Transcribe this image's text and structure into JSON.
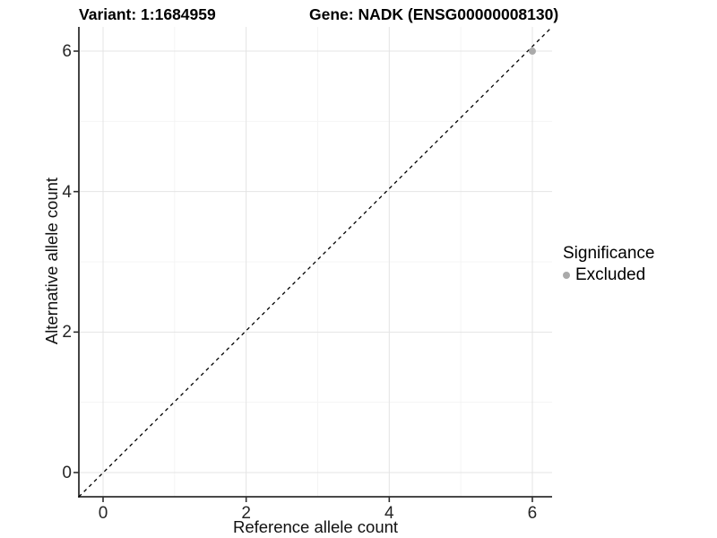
{
  "titles": {
    "variant": "Variant: 1:1684959",
    "gene": "Gene: NADK (ENSG00000008130)"
  },
  "legend": {
    "title": "Significance",
    "items": [
      {
        "label": "Excluded",
        "color": "#aaaaaa"
      }
    ]
  },
  "colors": {
    "background": "#ffffff",
    "grid_major": "#e4e4e4",
    "grid_minor": "#f4f4f4",
    "axis_line": "#2f2f2f",
    "identity_line": "#000000",
    "point": "#aaaaaa"
  },
  "chart_data": {
    "type": "scatter",
    "title": "Variant: 1:1684959   Gene: NADK (ENSG00000008130)",
    "xlabel": "Reference allele count",
    "ylabel": "Alternative allele count",
    "xlim": [
      -0.34,
      6.28
    ],
    "ylim": [
      -0.35,
      6.35
    ],
    "x_ticks": [
      0,
      2,
      4,
      6
    ],
    "y_ticks": [
      0,
      2,
      4,
      6
    ],
    "x_minor_gridlines": [
      1,
      3,
      5
    ],
    "y_minor_gridlines": [
      1,
      3,
      5
    ],
    "grid": true,
    "legend_position": "right",
    "reference_line": {
      "kind": "identity y=x",
      "style": "dashed",
      "color": "#000000"
    },
    "series": [
      {
        "name": "Excluded",
        "color": "#aaaaaa",
        "points": [
          {
            "x": 6,
            "y": 6
          }
        ]
      }
    ]
  }
}
